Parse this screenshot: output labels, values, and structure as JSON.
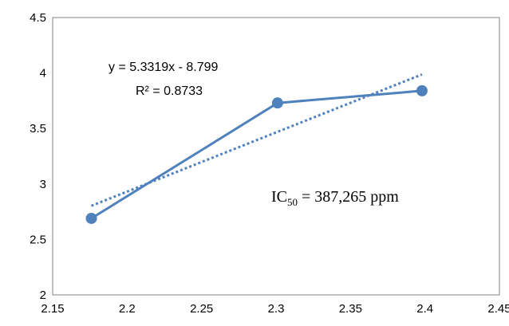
{
  "chart_data": {
    "type": "scatter",
    "title": "",
    "xlabel": "",
    "ylabel": "",
    "xlim": [
      2.15,
      2.45
    ],
    "ylim": [
      2,
      4.5
    ],
    "xticks": [
      "2.15",
      "2.2",
      "2.25",
      "2.3",
      "2.35",
      "2.4",
      "2.45"
    ],
    "yticks": [
      "2",
      "2.5",
      "3",
      "3.5",
      "4",
      "4.5"
    ],
    "grid": false,
    "legend": "none",
    "series": [
      {
        "x": [
          2.176,
          2.301,
          2.398
        ],
        "y": [
          2.69,
          3.73,
          3.84
        ],
        "color": "#4f81bd",
        "style": "solid line with circle markers"
      }
    ],
    "trendline": {
      "type": "linear",
      "slope": 5.3319,
      "intercept": -8.799,
      "x_range": [
        2.176,
        2.398
      ],
      "color": "#4f81bd",
      "style": "dotted"
    },
    "annotations": {
      "equation": "y = 5.3319x - 8.799",
      "r_squared": "R² = 0.8733",
      "ic50_prefix": "IC",
      "ic50_subscript": "50",
      "ic50_value": " = 387,265 ppm"
    }
  }
}
